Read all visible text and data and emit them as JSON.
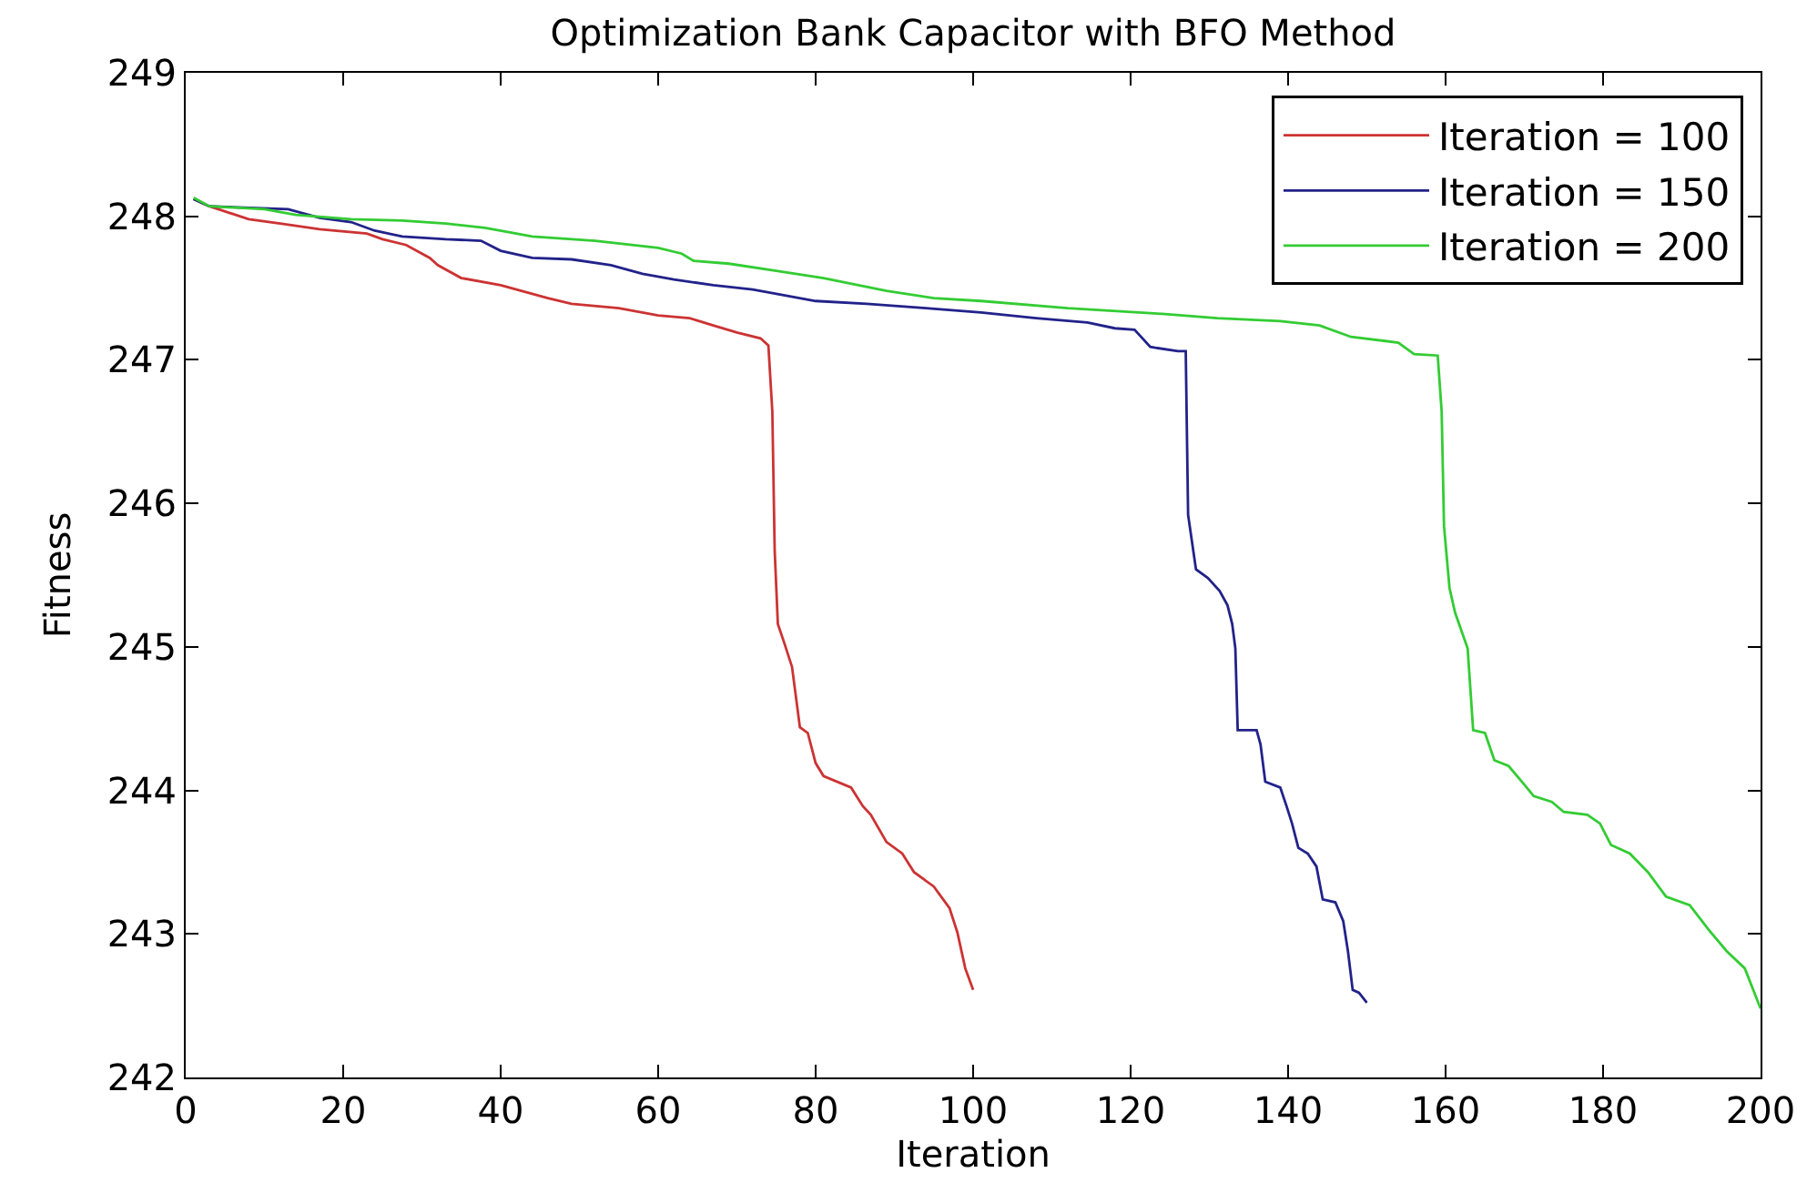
{
  "chart_data": {
    "type": "line",
    "title": "Optimization Bank Capacitor with BFO Method",
    "xlabel": "Iteration",
    "ylabel": "Fitness",
    "xlim": [
      0,
      200
    ],
    "xticks": [
      0,
      20,
      40,
      60,
      80,
      100,
      120,
      140,
      160,
      180,
      200
    ],
    "ylim": [
      242,
      249
    ],
    "yticks": [
      242,
      243,
      244,
      245,
      246,
      247,
      248,
      249
    ],
    "legend": "top right",
    "line_style": "solid",
    "series": [
      {
        "name": "Iteration = 100",
        "color": "#cc3333",
        "x": [
          1,
          3,
          8,
          12,
          17,
          23,
          25,
          28,
          31,
          32,
          35,
          40,
          46,
          49,
          55,
          60,
          64,
          67,
          70,
          73,
          74,
          74.5,
          74.8,
          75.2,
          76,
          77,
          78,
          79,
          80,
          81,
          84.5,
          86,
          87,
          89,
          91,
          92.5,
          95,
          97,
          98,
          99,
          100
        ],
        "values": [
          248.12,
          248.07,
          247.98,
          247.95,
          247.91,
          247.88,
          247.84,
          247.8,
          247.71,
          247.66,
          247.57,
          247.52,
          247.43,
          247.39,
          247.36,
          247.31,
          247.29,
          247.24,
          247.19,
          247.15,
          247.1,
          246.64,
          245.67,
          245.16,
          245.03,
          244.86,
          244.44,
          244.4,
          244.19,
          244.1,
          244.02,
          243.89,
          243.83,
          243.64,
          243.56,
          243.43,
          243.33,
          243.18,
          243.01,
          242.76,
          242.61
        ]
      },
      {
        "name": "Iteration = 150",
        "color": "#22228a",
        "x": [
          1,
          3,
          13,
          17,
          21,
          24,
          27.5,
          33,
          37.5,
          40,
          44,
          49,
          54,
          58,
          62,
          67,
          72,
          75,
          80,
          86.5,
          94,
          101,
          108,
          114.5,
          118,
          120.5,
          122.5,
          126,
          127,
          127.3,
          128.3,
          129.8,
          131.3,
          132.3,
          132.9,
          133.3,
          133.6,
          136,
          136.5,
          137.1,
          139,
          139.8,
          140.5,
          141.3,
          142.5,
          143.6,
          144.4,
          146,
          147,
          147.6,
          148.2,
          149,
          150
        ],
        "values": [
          248.12,
          248.07,
          248.05,
          247.99,
          247.96,
          247.9,
          247.86,
          247.84,
          247.83,
          247.76,
          247.71,
          247.7,
          247.66,
          247.6,
          247.56,
          247.52,
          247.49,
          247.46,
          247.41,
          247.39,
          247.36,
          247.33,
          247.29,
          247.26,
          247.22,
          247.21,
          247.09,
          247.06,
          247.06,
          245.92,
          245.54,
          245.48,
          245.39,
          245.29,
          245.16,
          244.99,
          244.42,
          244.42,
          244.32,
          244.06,
          244.02,
          243.89,
          243.77,
          243.6,
          243.56,
          243.47,
          243.24,
          243.22,
          243.09,
          242.88,
          242.61,
          242.59,
          242.52
        ]
      },
      {
        "name": "Iteration = 200",
        "color": "#33cc33",
        "x": [
          1,
          3,
          10,
          14,
          21,
          27.5,
          33,
          38,
          44,
          52,
          60,
          63,
          64.5,
          69,
          75,
          81,
          89,
          95,
          101,
          112,
          124,
          131,
          139,
          144,
          148,
          154,
          156,
          159,
          159.5,
          159.8,
          160.5,
          161.2,
          162.8,
          163.5,
          165,
          166.2,
          168,
          169.7,
          171.2,
          173.5,
          175,
          178,
          179.6,
          181,
          183.4,
          185.7,
          188,
          191,
          193.4,
          195.7,
          198,
          200
        ],
        "values": [
          248.13,
          248.07,
          248.05,
          248.01,
          247.98,
          247.97,
          247.95,
          247.92,
          247.86,
          247.83,
          247.78,
          247.74,
          247.69,
          247.67,
          247.62,
          247.57,
          247.48,
          247.43,
          247.41,
          247.36,
          247.32,
          247.29,
          247.27,
          247.24,
          247.16,
          247.12,
          247.04,
          247.03,
          246.64,
          245.84,
          245.41,
          245.24,
          244.99,
          244.42,
          244.4,
          244.21,
          244.17,
          244.06,
          243.96,
          243.92,
          243.85,
          243.83,
          243.77,
          243.62,
          243.56,
          243.43,
          243.26,
          243.2,
          243.03,
          242.88,
          242.76,
          242.48
        ]
      }
    ]
  }
}
